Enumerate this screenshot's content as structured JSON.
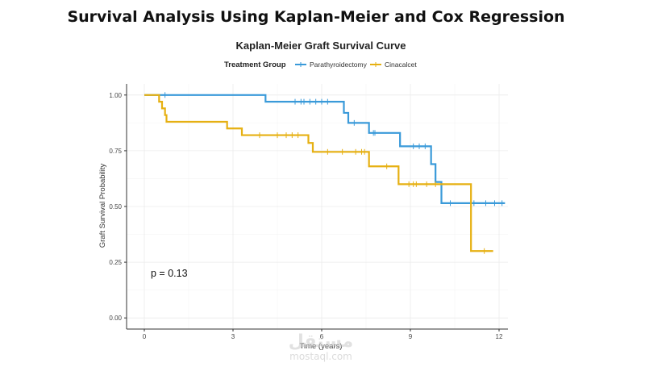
{
  "page": {
    "title": "Survival Analysis Using Kaplan-Meier and Cox Regression"
  },
  "watermark": {
    "arabic": "مستقل",
    "latin": "mostaql.com"
  },
  "chart_data": {
    "type": "line",
    "step": true,
    "title": "Kaplan-Meier Graft Survival Curve",
    "xlabel": "Time (years)",
    "ylabel": "Graft Survival Probability",
    "xlim": [
      -0.6,
      12.3
    ],
    "ylim": [
      -0.05,
      1.05
    ],
    "x_ticks": [
      0,
      3,
      6,
      9,
      12
    ],
    "x_tick_labels": [
      "0",
      "3",
      "6",
      "9",
      "12"
    ],
    "y_ticks": [
      0.0,
      0.25,
      0.5,
      0.75,
      1.0
    ],
    "y_tick_labels": [
      "0.00",
      "0.25",
      "0.50",
      "0.75",
      "1.00"
    ],
    "grid": true,
    "legend": {
      "title": "Treatment Group",
      "placement": "top"
    },
    "annotation": "p = 0.13",
    "series": [
      {
        "name": "Parathyroidectomy",
        "color": "#3a9ad9",
        "steps": [
          [
            0,
            1.0
          ],
          [
            4.1,
            0.97
          ],
          [
            6.75,
            0.92
          ],
          [
            6.9,
            0.875
          ],
          [
            7.6,
            0.83
          ],
          [
            8.65,
            0.77
          ],
          [
            9.7,
            0.69
          ],
          [
            9.85,
            0.61
          ],
          [
            10.05,
            0.515
          ],
          [
            12.2,
            0.515
          ]
        ],
        "censored": [
          [
            0.7,
            1.0
          ],
          [
            5.1,
            0.97
          ],
          [
            5.3,
            0.97
          ],
          [
            5.4,
            0.97
          ],
          [
            5.6,
            0.97
          ],
          [
            5.8,
            0.97
          ],
          [
            6.0,
            0.97
          ],
          [
            6.2,
            0.97
          ],
          [
            7.1,
            0.875
          ],
          [
            7.75,
            0.83
          ],
          [
            7.8,
            0.83
          ],
          [
            9.1,
            0.77
          ],
          [
            9.3,
            0.77
          ],
          [
            9.5,
            0.77
          ],
          [
            10.35,
            0.515
          ],
          [
            11.15,
            0.515
          ],
          [
            11.55,
            0.515
          ],
          [
            11.85,
            0.515
          ],
          [
            12.1,
            0.515
          ]
        ]
      },
      {
        "name": "Cinacalcet",
        "color": "#e6b012",
        "steps": [
          [
            0,
            1.0
          ],
          [
            0.5,
            0.97
          ],
          [
            0.6,
            0.94
          ],
          [
            0.7,
            0.91
          ],
          [
            0.75,
            0.88
          ],
          [
            2.8,
            0.85
          ],
          [
            3.3,
            0.82
          ],
          [
            5.55,
            0.785
          ],
          [
            5.7,
            0.745
          ],
          [
            7.6,
            0.68
          ],
          [
            8.6,
            0.6
          ],
          [
            11.05,
            0.3
          ],
          [
            11.8,
            0.3
          ]
        ],
        "censored": [
          [
            3.9,
            0.82
          ],
          [
            4.5,
            0.82
          ],
          [
            4.8,
            0.82
          ],
          [
            5.0,
            0.82
          ],
          [
            5.2,
            0.82
          ],
          [
            6.2,
            0.745
          ],
          [
            6.7,
            0.745
          ],
          [
            7.15,
            0.745
          ],
          [
            7.35,
            0.745
          ],
          [
            7.45,
            0.745
          ],
          [
            8.2,
            0.68
          ],
          [
            8.95,
            0.6
          ],
          [
            9.1,
            0.6
          ],
          [
            9.2,
            0.6
          ],
          [
            9.55,
            0.6
          ],
          [
            9.85,
            0.6
          ],
          [
            11.5,
            0.3
          ]
        ]
      }
    ]
  }
}
